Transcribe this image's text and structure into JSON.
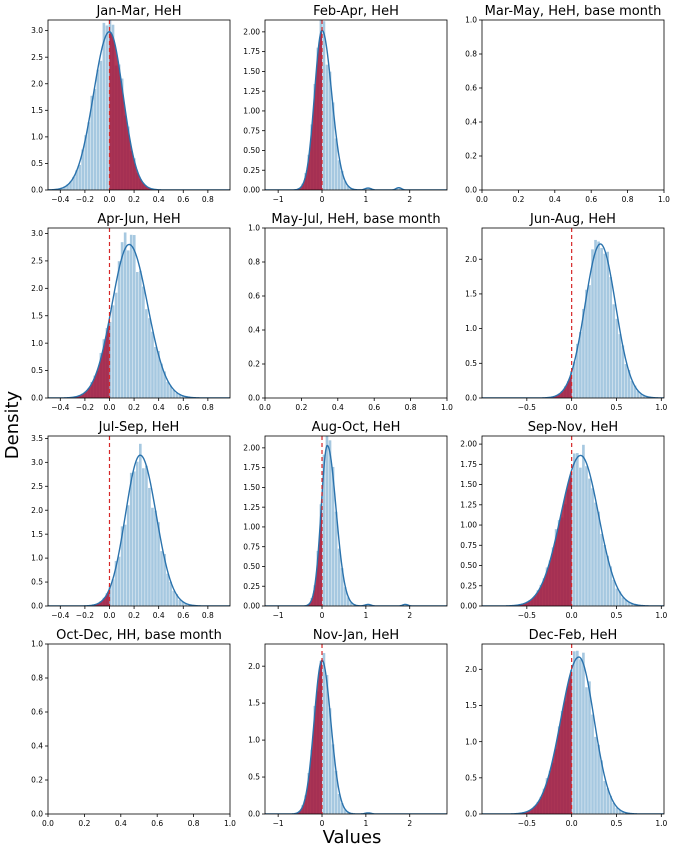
{
  "figure": {
    "ylabel": "Density",
    "xlabel": "Values"
  },
  "colors": {
    "hist": "#a6c8e0",
    "kde": "#2b73ad",
    "shade": "#a5153a",
    "mean_line": "#d62728",
    "axis": "#000000"
  },
  "chart_data": [
    {
      "type": "area",
      "title": "Jan-Mar, HeH",
      "xlim": [
        -0.5,
        0.98
      ],
      "ylim": [
        0,
        3.2
      ],
      "xticks": [
        -0.4,
        -0.2,
        0.0,
        0.2,
        0.4,
        0.6,
        0.8
      ],
      "xtick_labels": [
        "−0.4",
        "−0.2",
        "0.0",
        "0.2",
        "0.4",
        "0.6",
        "0.8"
      ],
      "yticks": [
        0.0,
        0.5,
        1.0,
        1.5,
        2.0,
        2.5,
        3.0
      ],
      "ytick_labels": [
        "0.0",
        "0.5",
        "1.0",
        "1.5",
        "2.0",
        "2.5",
        "3.0"
      ],
      "kde": {
        "mode": 0.0,
        "peak": 2.98,
        "sd_left": 0.13,
        "sd_right": 0.11
      },
      "threshold": 0.0,
      "hist_noise": 0.12
    },
    {
      "type": "area",
      "title": "Feb-Apr, HeH",
      "xlim": [
        -1.3,
        2.85
      ],
      "ylim": [
        0,
        2.15
      ],
      "xticks": [
        -1,
        0,
        1,
        2
      ],
      "xtick_labels": [
        "−1",
        "0",
        "1",
        "2"
      ],
      "yticks": [
        0.0,
        0.25,
        0.5,
        0.75,
        1.0,
        1.25,
        1.5,
        1.75,
        2.0
      ],
      "ytick_labels": [
        "0.00",
        "0.25",
        "0.50",
        "0.75",
        "1.00",
        "1.25",
        "1.50",
        "1.75",
        "2.00"
      ],
      "kde": {
        "mode": 0.0,
        "peak": 2.02,
        "sd_left": 0.17,
        "sd_right": 0.22
      },
      "threshold": 0.0,
      "hist_noise": 0.1,
      "bumps": [
        {
          "x": 1.05,
          "h": 0.025,
          "sd": 0.07
        },
        {
          "x": 1.75,
          "h": 0.03,
          "sd": 0.06
        }
      ]
    },
    {
      "type": "empty",
      "title": "Mar-May, HeH, base month",
      "xlim": [
        0,
        1
      ],
      "ylim": [
        0,
        1
      ],
      "xticks": [
        0.0,
        0.2,
        0.4,
        0.6,
        0.8,
        1.0
      ],
      "xtick_labels": [
        "0.0",
        "0.2",
        "0.4",
        "0.6",
        "0.8",
        "1.0"
      ],
      "yticks": [
        0.0,
        0.2,
        0.4,
        0.6,
        0.8,
        1.0
      ],
      "ytick_labels": [
        "0.0",
        "0.2",
        "0.4",
        "0.6",
        "0.8",
        "1.0"
      ]
    },
    {
      "type": "area",
      "title": "Apr-Jun, HeH",
      "xlim": [
        -0.5,
        0.98
      ],
      "ylim": [
        0,
        3.1
      ],
      "xticks": [
        -0.4,
        -0.2,
        0.0,
        0.2,
        0.4,
        0.6,
        0.8
      ],
      "xtick_labels": [
        "−0.4",
        "−0.2",
        "0.0",
        "0.2",
        "0.4",
        "0.6",
        "0.8"
      ],
      "yticks": [
        0.0,
        0.5,
        1.0,
        1.5,
        2.0,
        2.5,
        3.0
      ],
      "ytick_labels": [
        "0.0",
        "0.5",
        "1.0",
        "1.5",
        "2.0",
        "2.5",
        "3.0"
      ],
      "kde": {
        "mode": 0.16,
        "peak": 2.8,
        "sd_left": 0.14,
        "sd_right": 0.15
      },
      "threshold": 0.0,
      "hist_noise": 0.12
    },
    {
      "type": "empty",
      "title": "May-Jul, HeH, base month",
      "xlim": [
        0,
        1
      ],
      "ylim": [
        0,
        1
      ],
      "xticks": [
        0.0,
        0.2,
        0.4,
        0.6,
        0.8,
        1.0
      ],
      "xtick_labels": [
        "0.0",
        "0.2",
        "0.4",
        "0.6",
        "0.8",
        "1.0"
      ],
      "yticks": [
        0.0,
        0.2,
        0.4,
        0.6,
        0.8,
        1.0
      ],
      "ytick_labels": [
        "0.0",
        "0.2",
        "0.4",
        "0.6",
        "0.8",
        "1.0"
      ]
    },
    {
      "type": "area",
      "title": "Jun-Aug, HeH",
      "xlim": [
        -1.0,
        1.03
      ],
      "ylim": [
        0,
        2.45
      ],
      "xticks": [
        -0.5,
        0.0,
        0.5,
        1.0
      ],
      "xtick_labels": [
        "−0.5",
        "0.0",
        "0.5",
        "1.0"
      ],
      "yticks": [
        0.0,
        0.5,
        1.0,
        1.5,
        2.0
      ],
      "ytick_labels": [
        "0.0",
        "0.5",
        "1.0",
        "1.5",
        "2.0"
      ],
      "kde": {
        "mode": 0.32,
        "peak": 2.22,
        "sd_left": 0.17,
        "sd_right": 0.17
      },
      "threshold": 0.0,
      "hist_noise": 0.1
    },
    {
      "type": "area",
      "title": "Jul-Sep, HeH",
      "xlim": [
        -0.5,
        0.98
      ],
      "ylim": [
        0,
        3.55
      ],
      "xticks": [
        -0.4,
        -0.2,
        0.0,
        0.2,
        0.4,
        0.6,
        0.8
      ],
      "xtick_labels": [
        "−0.4",
        "−0.2",
        "0.0",
        "0.2",
        "0.4",
        "0.6",
        "0.8"
      ],
      "yticks": [
        0.0,
        0.5,
        1.0,
        1.5,
        2.0,
        2.5,
        3.0,
        3.5
      ],
      "ytick_labels": [
        "0.0",
        "0.5",
        "1.0",
        "1.5",
        "2.0",
        "2.5",
        "3.0",
        "3.5"
      ],
      "kde": {
        "mode": 0.25,
        "peak": 3.15,
        "sd_left": 0.12,
        "sd_right": 0.13
      },
      "threshold": 0.0,
      "hist_noise": 0.12
    },
    {
      "type": "area",
      "title": "Aug-Oct, HeH",
      "xlim": [
        -1.3,
        2.85
      ],
      "ylim": [
        0,
        2.15
      ],
      "xticks": [
        -1,
        0,
        1,
        2
      ],
      "xtick_labels": [
        "−1",
        "0",
        "1",
        "2"
      ],
      "yticks": [
        0.0,
        0.25,
        0.5,
        0.75,
        1.0,
        1.25,
        1.5,
        1.75,
        2.0
      ],
      "ytick_labels": [
        "0.00",
        "0.25",
        "0.50",
        "0.75",
        "1.00",
        "1.25",
        "1.50",
        "1.75",
        "2.00"
      ],
      "kde": {
        "mode": 0.12,
        "peak": 2.03,
        "sd_left": 0.14,
        "sd_right": 0.2
      },
      "threshold": 0.0,
      "hist_noise": 0.1,
      "bumps": [
        {
          "x": 1.05,
          "h": 0.02,
          "sd": 0.07
        },
        {
          "x": 1.9,
          "h": 0.02,
          "sd": 0.06
        }
      ]
    },
    {
      "type": "area",
      "title": "Sep-Nov, HeH",
      "xlim": [
        -1.0,
        1.03
      ],
      "ylim": [
        0,
        2.1
      ],
      "xticks": [
        -0.5,
        0.0,
        0.5,
        1.0
      ],
      "xtick_labels": [
        "−0.5",
        "0.0",
        "0.5",
        "1.0"
      ],
      "yticks": [
        0.0,
        0.25,
        0.5,
        0.75,
        1.0,
        1.25,
        1.5,
        1.75,
        2.0
      ],
      "ytick_labels": [
        "0.00",
        "0.25",
        "0.50",
        "0.75",
        "1.00",
        "1.25",
        "1.50",
        "1.75",
        "2.00"
      ],
      "kde": {
        "mode": 0.1,
        "peak": 1.86,
        "sd_left": 0.22,
        "sd_right": 0.2
      },
      "threshold": 0.0,
      "hist_noise": 0.1
    },
    {
      "type": "empty",
      "title": "Oct-Dec, HH, base month",
      "xlim": [
        0,
        1
      ],
      "ylim": [
        0,
        1
      ],
      "xticks": [
        0.0,
        0.2,
        0.4,
        0.6,
        0.8,
        1.0
      ],
      "xtick_labels": [
        "0.0",
        "0.2",
        "0.4",
        "0.6",
        "0.8",
        "1.0"
      ],
      "yticks": [
        0.0,
        0.2,
        0.4,
        0.6,
        0.8,
        1.0
      ],
      "ytick_labels": [
        "0.0",
        "0.2",
        "0.4",
        "0.6",
        "0.8",
        "1.0"
      ]
    },
    {
      "type": "area",
      "title": "Nov-Jan, HeH",
      "xlim": [
        -1.3,
        2.85
      ],
      "ylim": [
        0,
        2.3
      ],
      "xticks": [
        -1,
        0,
        1,
        2
      ],
      "xtick_labels": [
        "−1",
        "0",
        "1",
        "2"
      ],
      "yticks": [
        0.0,
        0.5,
        1.0,
        1.5,
        2.0
      ],
      "ytick_labels": [
        "0.0",
        "0.5",
        "1.0",
        "1.5",
        "2.0"
      ],
      "kde": {
        "mode": 0.0,
        "peak": 2.08,
        "sd_left": 0.18,
        "sd_right": 0.2
      },
      "threshold": 0.0,
      "hist_noise": 0.1,
      "bumps": [
        {
          "x": 1.05,
          "h": 0.015,
          "sd": 0.07
        }
      ]
    },
    {
      "type": "area",
      "title": "Dec-Feb, HeH",
      "xlim": [
        -1.0,
        1.03
      ],
      "ylim": [
        0,
        2.35
      ],
      "xticks": [
        -0.5,
        0.0,
        0.5,
        1.0
      ],
      "xtick_labels": [
        "−0.5",
        "0.0",
        "0.5",
        "1.0"
      ],
      "yticks": [
        0.0,
        0.5,
        1.0,
        1.5,
        2.0
      ],
      "ytick_labels": [
        "0.0",
        "0.5",
        "1.0",
        "1.5",
        "2.0"
      ],
      "kde": {
        "mode": 0.08,
        "peak": 2.17,
        "sd_left": 0.2,
        "sd_right": 0.17
      },
      "threshold": 0.0,
      "hist_noise": 0.1
    }
  ]
}
